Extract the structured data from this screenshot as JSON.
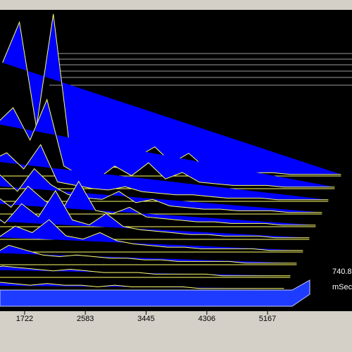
{
  "chart_data": {
    "type": "waterfall",
    "x": [
      600,
      840,
      1080,
      1320,
      1560,
      1800,
      2040,
      2280,
      2520,
      2760,
      3000,
      3240,
      3480,
      3720,
      3960,
      4200,
      4440,
      4680,
      4920,
      5160,
      5400
    ],
    "xlim": [
      1373,
      5516
    ],
    "xticks": [
      1722,
      2583,
      3445,
      4306,
      5167
    ],
    "z_labels": [
      "740.8",
      "mSec"
    ],
    "fill_color": "#0000ff",
    "line_color": "#ffff66",
    "base_color": "#1e3cff",
    "series": [
      {
        "values": [
          3,
          4,
          3,
          5,
          4,
          3,
          4,
          3,
          3,
          2,
          3,
          2,
          2,
          2,
          2,
          1,
          1,
          1,
          1,
          1,
          1
        ]
      },
      {
        "values": [
          5,
          6,
          5,
          7,
          6,
          5,
          4,
          5,
          4,
          3,
          3,
          3,
          2,
          2,
          2,
          2,
          1,
          1,
          1,
          1,
          1
        ]
      },
      {
        "values": [
          8,
          10,
          6,
          12,
          9,
          6,
          5,
          6,
          5,
          4,
          4,
          3,
          3,
          2,
          2,
          2,
          2,
          1,
          1,
          1,
          1
        ]
      },
      {
        "values": [
          10,
          14,
          9,
          16,
          12,
          20,
          10,
          8,
          12,
          7,
          5,
          4,
          3,
          3,
          2,
          2,
          2,
          2,
          1,
          1,
          1
        ]
      },
      {
        "values": [
          12,
          18,
          10,
          22,
          14,
          30,
          12,
          9,
          16,
          8,
          6,
          5,
          4,
          3,
          3,
          2,
          2,
          2,
          1,
          1,
          1
        ]
      },
      {
        "values": [
          15,
          20,
          12,
          25,
          16,
          10,
          28,
          10,
          8,
          12,
          6,
          5,
          4,
          3,
          3,
          2,
          2,
          2,
          1,
          1,
          1
        ]
      },
      {
        "values": [
          18,
          24,
          14,
          28,
          18,
          12,
          10,
          9,
          14,
          7,
          9,
          5,
          4,
          3,
          3,
          2,
          2,
          2,
          1,
          1,
          1
        ]
      },
      {
        "values": [
          25,
          30,
          20,
          35,
          12,
          10,
          8,
          7,
          9,
          6,
          5,
          4,
          4,
          3,
          2,
          2,
          2,
          1,
          1,
          1,
          1
        ]
      },
      {
        "values": [
          40,
          50,
          30,
          55,
          14,
          8,
          6,
          14,
          8,
          16,
          6,
          10,
          4,
          3,
          2,
          2,
          2,
          1,
          1,
          1,
          1
        ]
      },
      {
        "values": [
          70,
          95,
          30,
          100,
          15,
          8,
          6,
          5,
          12,
          18,
          8,
          14,
          5,
          3,
          2,
          2,
          2,
          1,
          1,
          1,
          1
        ]
      }
    ]
  }
}
